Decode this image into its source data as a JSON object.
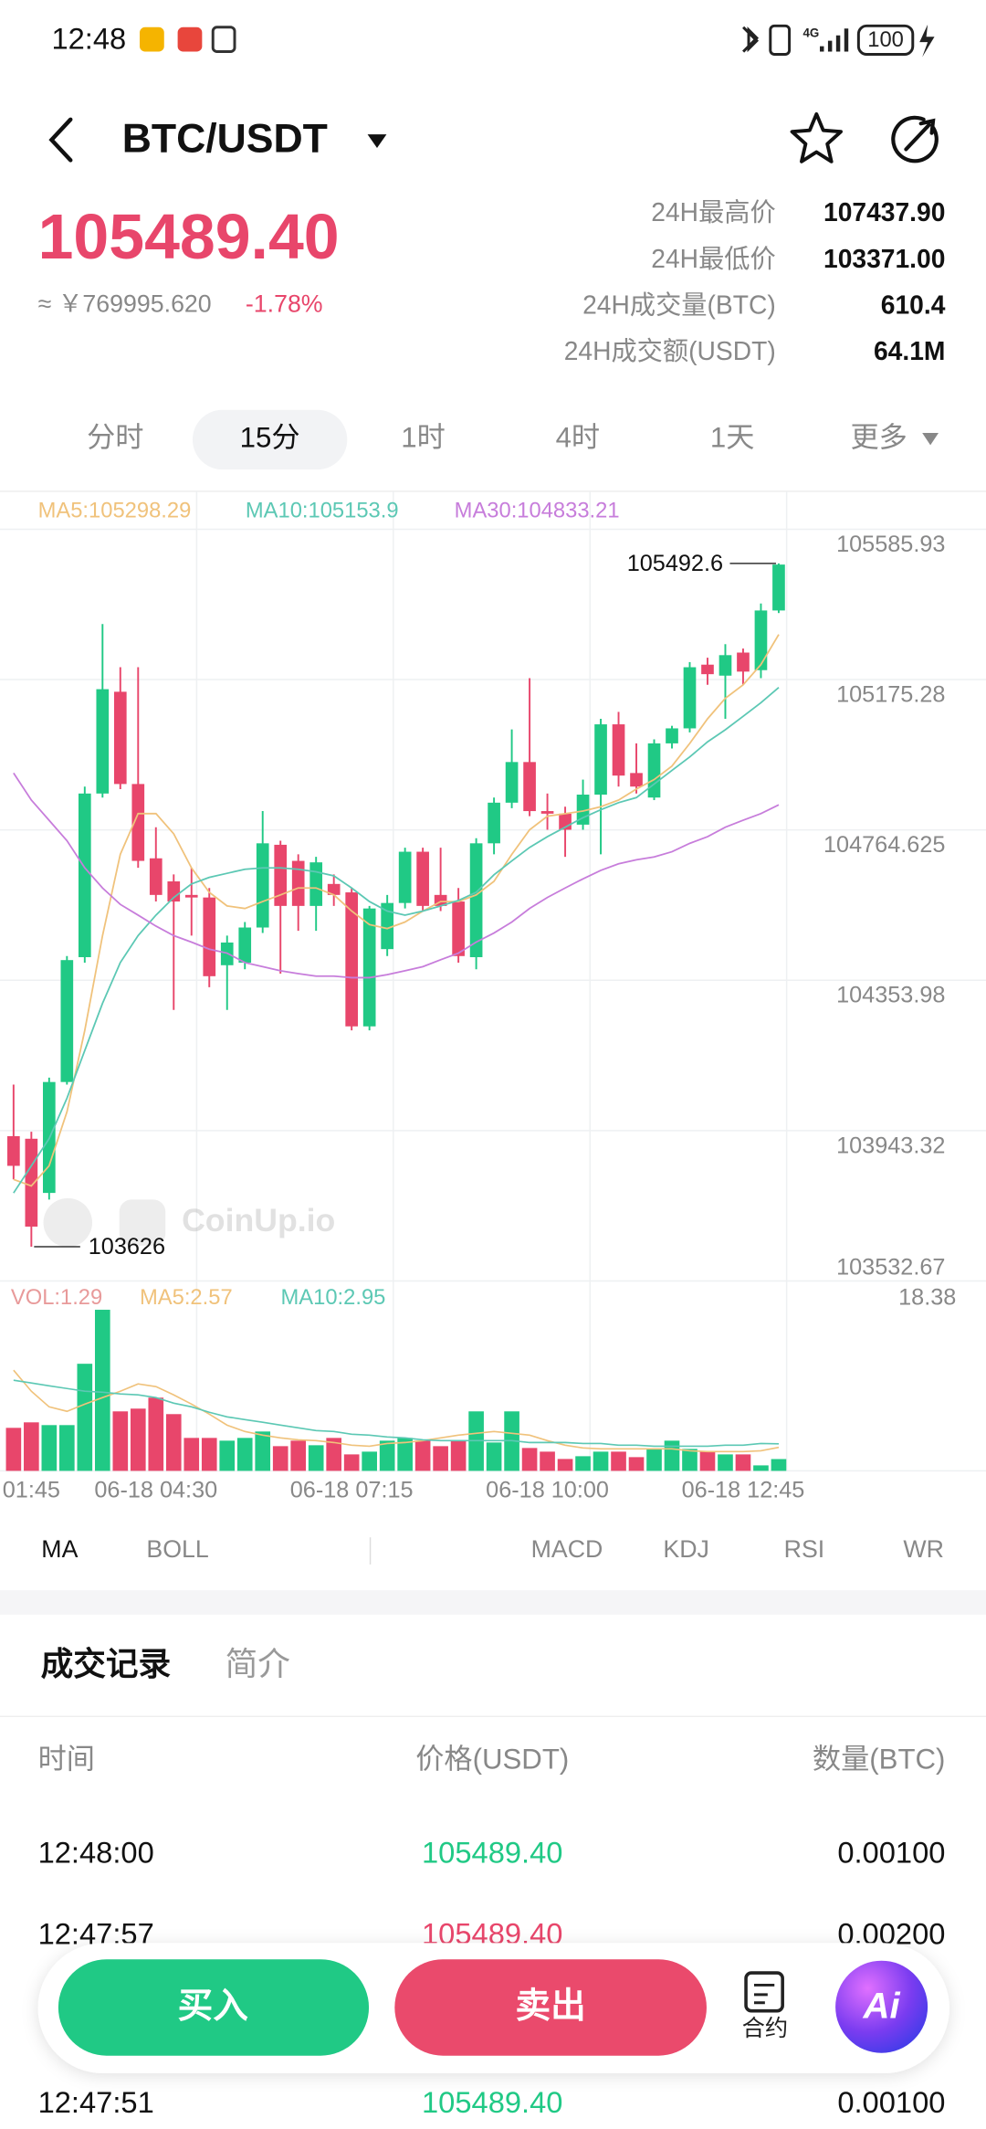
{
  "status_bar": {
    "time": "12:48",
    "battery": "100"
  },
  "header": {
    "title": "BTC/USDT"
  },
  "ticker": {
    "price": "105489.40",
    "cny": "≈ ￥769995.620",
    "change": "-1.78%",
    "stats": [
      {
        "label": "24H最高价",
        "value": "107437.90"
      },
      {
        "label": "24H最低价",
        "value": "103371.00"
      },
      {
        "label": "24H成交量(BTC)",
        "value": "610.4"
      },
      {
        "label": "24H成交额(USDT)",
        "value": "64.1M"
      }
    ]
  },
  "intervals": [
    "分时",
    "15分",
    "1时",
    "4时",
    "1天",
    "更多"
  ],
  "chart_data": [
    {
      "type": "candlestick",
      "watermark": "CoinUp.io",
      "categories": [
        null,
        "01:45",
        null,
        null,
        null,
        null,
        null,
        null,
        "06-18 04:30",
        null,
        null,
        null,
        null,
        null,
        null,
        null,
        null,
        null,
        null,
        "06-18 07:15",
        null,
        null,
        null,
        null,
        null,
        null,
        null,
        null,
        null,
        null,
        "06-18 10:00",
        null,
        null,
        null,
        null,
        null,
        null,
        null,
        null,
        null,
        null,
        "06-18 12:45",
        null,
        null
      ],
      "open": [
        103928,
        103921,
        103773,
        104076,
        104417,
        104864,
        105142,
        104890,
        104687,
        104624,
        104587,
        104580,
        104395,
        104402,
        104498,
        104724,
        104680,
        104557,
        104617,
        104594,
        104228,
        104439,
        104565,
        104705,
        104587,
        104569,
        104417,
        104728,
        104839,
        104950,
        104816,
        104809,
        104779,
        104861,
        105053,
        104920,
        104853,
        105001,
        105042,
        105216,
        105186,
        105249,
        105201,
        105364
      ],
      "high": [
        104069,
        103940,
        104088,
        104420,
        104883,
        105327,
        105209,
        105209,
        104772,
        104643,
        104661,
        104606,
        104476,
        104513,
        104816,
        104735,
        104698,
        104691,
        104643,
        104606,
        104557,
        104587,
        104716,
        104716,
        104716,
        104606,
        104742,
        104853,
        105039,
        105179,
        104864,
        104828,
        104902,
        105068,
        105087,
        105001,
        105012,
        105049,
        105223,
        105235,
        105272,
        105260,
        105383,
        105492.6
      ],
      "low": [
        103810,
        103626,
        103755,
        104069,
        104402,
        104853,
        104876,
        104661,
        104569,
        104273,
        104476,
        104335,
        104273,
        104384,
        104483,
        104372,
        104489,
        104489,
        104557,
        104217,
        104217,
        104420,
        104550,
        104543,
        104543,
        104402,
        104384,
        104698,
        104824,
        104802,
        104765,
        104691,
        104765,
        104698,
        104883,
        104864,
        104846,
        104987,
        105031,
        105161,
        105068,
        105161,
        105179,
        105357
      ],
      "close": [
        103847,
        103681,
        104076,
        104409,
        104864,
        105149,
        104890,
        104680,
        104587,
        104569,
        104580,
        104365,
        104457,
        104498,
        104728,
        104557,
        104557,
        104676,
        104587,
        104228,
        104550,
        104565,
        104705,
        104557,
        104557,
        104420,
        104728,
        104839,
        104950,
        104816,
        104809,
        104765,
        104861,
        105053,
        104913,
        104883,
        105001,
        105042,
        105209,
        105190,
        105242,
        105197,
        105364,
        105489.4
      ],
      "up_color": "#20c985",
      "down_color": "#e8466b",
      "ylim": [
        103532.67,
        105585.93
      ],
      "yticks": [
        103532.67,
        103943.32,
        104353.98,
        104764.625,
        105175.28,
        105585.93
      ],
      "grid": true,
      "series": [
        {
          "name": "MA5:105298.29",
          "color": "#f0c27b",
          "values": [
            103810,
            103792,
            103847,
            103995,
            104217,
            104476,
            104698,
            104809,
            104809,
            104754,
            104661,
            104594,
            104557,
            104550,
            104569,
            104587,
            104606,
            104606,
            104587,
            104543,
            104506,
            104495,
            104513,
            104543,
            104569,
            104569,
            104587,
            104624,
            104698,
            104765,
            104802,
            104809,
            104816,
            104828,
            104846,
            104876,
            104902,
            104939,
            105001,
            105068,
            105124,
            105161,
            105216,
            105298.29
          ]
        },
        {
          "name": "MA10:105153.9",
          "color": "#5cc8b4",
          "values": [
            103773,
            103847,
            103921,
            104032,
            104162,
            104291,
            104402,
            104476,
            104532,
            104580,
            104617,
            104635,
            104646,
            104657,
            104661,
            104661,
            104657,
            104650,
            104639,
            104606,
            104569,
            104543,
            104532,
            104543,
            104557,
            104572,
            104594,
            104642,
            104680,
            104717,
            104746,
            104772,
            104798,
            104820,
            104839,
            104853,
            104890,
            104927,
            104964,
            105005,
            105038,
            105075,
            105112,
            105153.9
          ]
        },
        {
          "name": "MA30:104833.21",
          "color": "#c77ddb",
          "values": [
            104920,
            104846,
            104791,
            104735,
            104661,
            104606,
            104561,
            104532,
            104502,
            104476,
            104458,
            104439,
            104428,
            104402,
            104391,
            104380,
            104372,
            104365,
            104365,
            104361,
            104361,
            104369,
            104380,
            104391,
            104410,
            104428,
            104458,
            104483,
            104513,
            104550,
            104580,
            104606,
            104631,
            104654,
            104672,
            104683,
            104691,
            104705,
            104728,
            104746,
            104772,
            104791,
            104809,
            104833.21
          ]
        }
      ]
    },
    {
      "type": "bar",
      "title": "VOL:1.29",
      "title_color": "#e89a9a",
      "values": [
        4.7,
        5.3,
        5.0,
        5.0,
        11.7,
        17.6,
        6.5,
        6.8,
        8.0,
        6.2,
        3.6,
        3.6,
        3.3,
        3.6,
        4.3,
        2.7,
        3.3,
        2.8,
        3.6,
        1.8,
        2.1,
        3.3,
        3.6,
        3.3,
        2.7,
        3.3,
        6.5,
        3.1,
        6.5,
        2.5,
        2.1,
        1.3,
        1.6,
        2.1,
        2.1,
        1.5,
        2.4,
        3.3,
        2.4,
        2.1,
        1.8,
        1.8,
        0.6,
        1.29
      ],
      "ylim": [
        0,
        18.38
      ],
      "yticks": [
        18.38
      ],
      "series": [
        {
          "name": "MA5:2.57",
          "color": "#f0c27b",
          "values": [
            11.0,
            8.7,
            7.0,
            6.5,
            7.3,
            8.0,
            8.7,
            9.5,
            9.2,
            8.3,
            7.3,
            6.2,
            5.0,
            4.3,
            3.9,
            3.6,
            3.4,
            3.3,
            3.1,
            2.8,
            2.7,
            3.0,
            3.1,
            3.3,
            3.6,
            3.9,
            4.1,
            4.3,
            4.1,
            3.9,
            3.3,
            2.8,
            2.5,
            2.4,
            2.4,
            2.4,
            2.4,
            2.4,
            2.2,
            2.1,
            2.1,
            2.1,
            2.2,
            2.57
          ]
        },
        {
          "name": "MA10:2.95",
          "color": "#5cc8b4",
          "values": [
            9.9,
            9.6,
            9.3,
            9.0,
            8.7,
            8.6,
            8.4,
            8.3,
            8.0,
            7.4,
            7.0,
            6.4,
            5.9,
            5.6,
            5.3,
            5.0,
            4.7,
            4.4,
            4.3,
            4.0,
            3.9,
            3.7,
            3.6,
            3.4,
            3.3,
            3.3,
            3.3,
            3.3,
            3.3,
            3.1,
            3.1,
            3.1,
            3.0,
            3.0,
            2.8,
            2.8,
            2.7,
            2.7,
            2.7,
            2.7,
            2.8,
            2.8,
            3.0,
            2.95
          ]
        }
      ]
    }
  ],
  "indicators": [
    "MA",
    "BOLL",
    "MACD",
    "KDJ",
    "RSI",
    "WR"
  ],
  "sections": [
    "成交记录",
    "简介"
  ],
  "trades": {
    "columns": [
      "时间",
      "价格(USDT)",
      "数量(BTC)"
    ],
    "rows": [
      {
        "cells": [
          "12:48:00",
          "105489.40",
          "0.00100"
        ],
        "color": "#20c985"
      },
      {
        "cells": [
          "12:47:57",
          "105489.40",
          "0.00200"
        ],
        "color": "#e8466b"
      },
      {
        "cells": [
          "12:47:51",
          "105489.40",
          "0.00100"
        ],
        "color": "#20c985"
      }
    ]
  },
  "actions": {
    "buy": "买入",
    "sell": "卖出",
    "contract": "合约",
    "ai": "Ai"
  }
}
